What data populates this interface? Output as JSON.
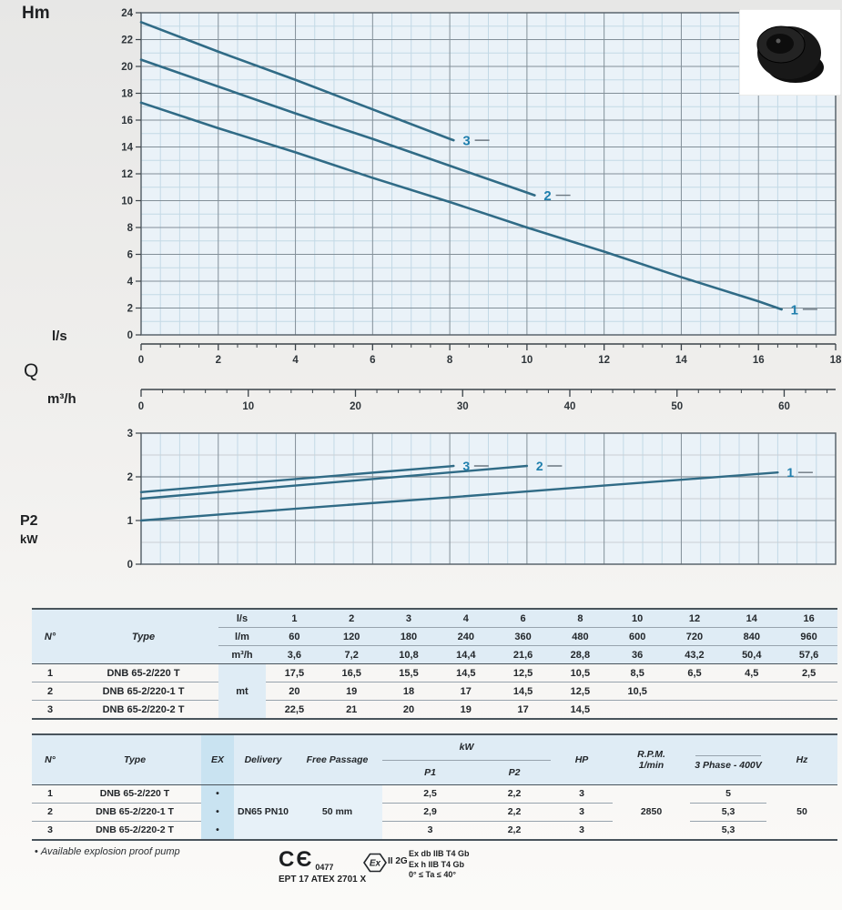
{
  "colors": {
    "plot_bg": "#eaf2f8",
    "grid_minor": "#c3d9e6",
    "grid_minor_gray": "#c9cfd5",
    "grid_major": "#828f98",
    "border": "#5a656d",
    "axis": "#3a4248",
    "curve": "#306b86",
    "curve_label": "#1f7fad",
    "label_dash": "#6b7680",
    "tick_text": "#2f353a"
  },
  "chart_labels": {
    "head_y": "Hm",
    "flow_ls": "l/s",
    "flow_q": "Q",
    "flow_m3h": "m³/h",
    "p2": "P2",
    "p2_unit": "kW"
  },
  "chart_data": [
    {
      "type": "line",
      "name": "head-vs-flow",
      "ylabel": "Hm",
      "xlabel": "l/s",
      "x2label": "m³/h",
      "xlim": [
        0,
        18
      ],
      "ylim": [
        0,
        24
      ],
      "x_ticks": [
        0,
        2,
        4,
        6,
        8,
        10,
        12,
        14,
        16,
        18
      ],
      "y_ticks": [
        0,
        2,
        4,
        6,
        8,
        10,
        12,
        14,
        16,
        18,
        20,
        22,
        24
      ],
      "x2_ticks": [
        0,
        10,
        20,
        30,
        40,
        50,
        60
      ],
      "x2_per_x": 3.6,
      "minor_x_step": 0.5,
      "minor_y_step": 1,
      "grid": true,
      "series": [
        {
          "name": "1",
          "points": [
            [
              0,
              17.3
            ],
            [
              2,
              15.4
            ],
            [
              4,
              13.6
            ],
            [
              6,
              11.7
            ],
            [
              8,
              9.9
            ],
            [
              10,
              8.0
            ],
            [
              12,
              6.2
            ],
            [
              14,
              4.3
            ],
            [
              16,
              2.5
            ],
            [
              16.6,
              1.9
            ]
          ]
        },
        {
          "name": "2",
          "points": [
            [
              0,
              20.5
            ],
            [
              2,
              18.5
            ],
            [
              4,
              16.5
            ],
            [
              6,
              14.6
            ],
            [
              8,
              12.6
            ],
            [
              10,
              10.6
            ],
            [
              10.2,
              10.4
            ]
          ]
        },
        {
          "name": "3",
          "points": [
            [
              0,
              23.3
            ],
            [
              2,
              21.1
            ],
            [
              4,
              19.0
            ],
            [
              6,
              16.8
            ],
            [
              8,
              14.6
            ],
            [
              8.1,
              14.5
            ]
          ]
        }
      ]
    },
    {
      "type": "line",
      "name": "p2-vs-flow",
      "ylabel": "P2",
      "ylabel_unit": "kW",
      "xlim": [
        0,
        18
      ],
      "ylim": [
        0,
        3
      ],
      "y_ticks": [
        0,
        1,
        2,
        3
      ],
      "minor_x_step": 0.5,
      "minor_y_step": 0.5,
      "grid": true,
      "series": [
        {
          "name": "1",
          "points": [
            [
              0,
              1.0
            ],
            [
              4,
              1.27
            ],
            [
              8,
              1.53
            ],
            [
              12,
              1.8
            ],
            [
              16.5,
              2.1
            ]
          ]
        },
        {
          "name": "2",
          "points": [
            [
              0,
              1.5
            ],
            [
              4,
              1.8
            ],
            [
              8,
              2.1
            ],
            [
              10,
              2.25
            ]
          ]
        },
        {
          "name": "3",
          "points": [
            [
              0,
              1.65
            ],
            [
              4,
              1.95
            ],
            [
              8,
              2.24
            ],
            [
              8.1,
              2.25
            ]
          ]
        }
      ]
    }
  ],
  "table_hydraulic": {
    "col_n": "N°",
    "col_type": "Type",
    "unit_rows": [
      {
        "unit": "l/s",
        "values": [
          "1",
          "2",
          "3",
          "4",
          "6",
          "8",
          "10",
          "12",
          "14",
          "16"
        ]
      },
      {
        "unit": "l/m",
        "values": [
          "60",
          "120",
          "180",
          "240",
          "360",
          "480",
          "600",
          "720",
          "840",
          "960"
        ]
      },
      {
        "unit": "m³/h",
        "values": [
          "3,6",
          "7,2",
          "10,8",
          "14,4",
          "21,6",
          "28,8",
          "36",
          "43,2",
          "50,4",
          "57,6"
        ]
      }
    ],
    "unit_body": "mt",
    "rows": [
      {
        "n": "1",
        "type": "DNB 65-2/220 T",
        "values": [
          "17,5",
          "16,5",
          "15,5",
          "14,5",
          "12,5",
          "10,5",
          "8,5",
          "6,5",
          "4,5",
          "2,5"
        ]
      },
      {
        "n": "2",
        "type": "DNB 65-2/220-1 T",
        "values": [
          "20",
          "19",
          "18",
          "17",
          "14,5",
          "12,5",
          "10,5",
          "",
          "",
          ""
        ]
      },
      {
        "n": "3",
        "type": "DNB 65-2/220-2 T",
        "values": [
          "22,5",
          "21",
          "20",
          "19",
          "17",
          "14,5",
          "",
          "",
          "",
          ""
        ]
      }
    ]
  },
  "table_specs": {
    "headers": {
      "n": "N°",
      "type": "Type",
      "ex": "EX",
      "delivery": "Delivery",
      "free_passage": "Free Passage",
      "kw": "kW",
      "p1": "P1",
      "p2": "P2",
      "hp": "HP",
      "rpm_line1": "R.P.M.",
      "rpm_line2": "1/min",
      "phase": "3 Phase - 400V",
      "hz": "Hz"
    },
    "delivery_value": "DN65 PN10",
    "free_passage_value": "50 mm",
    "rpm_value": "2850",
    "hz_value": "50",
    "rows": [
      {
        "n": "1",
        "type": "DNB 65-2/220 T",
        "ex": "•",
        "p1": "2,5",
        "p2": "2,2",
        "hp": "3",
        "amp": "5"
      },
      {
        "n": "2",
        "type": "DNB 65-2/220-1 T",
        "ex": "•",
        "p1": "2,9",
        "p2": "2,2",
        "hp": "3",
        "amp": "5,3"
      },
      {
        "n": "3",
        "type": "DNB 65-2/220-2 T",
        "ex": "•",
        "p1": "3",
        "p2": "2,2",
        "hp": "3",
        "amp": "5,3"
      }
    ]
  },
  "footer": {
    "note_bullet": "•",
    "note": "Available explosion proof pump",
    "ce_text": "CЄ",
    "ce_number": "0477",
    "atex_cert": "EPT 17 ATEX 2701 X",
    "ex_symbol": "Ex",
    "equipment_group": "II 2G",
    "marking_lines": [
      "Ex db IIB T4 Gb",
      "Ex h IIB T4 Gb",
      "0° ≤ Ta ≤ 40°"
    ]
  }
}
